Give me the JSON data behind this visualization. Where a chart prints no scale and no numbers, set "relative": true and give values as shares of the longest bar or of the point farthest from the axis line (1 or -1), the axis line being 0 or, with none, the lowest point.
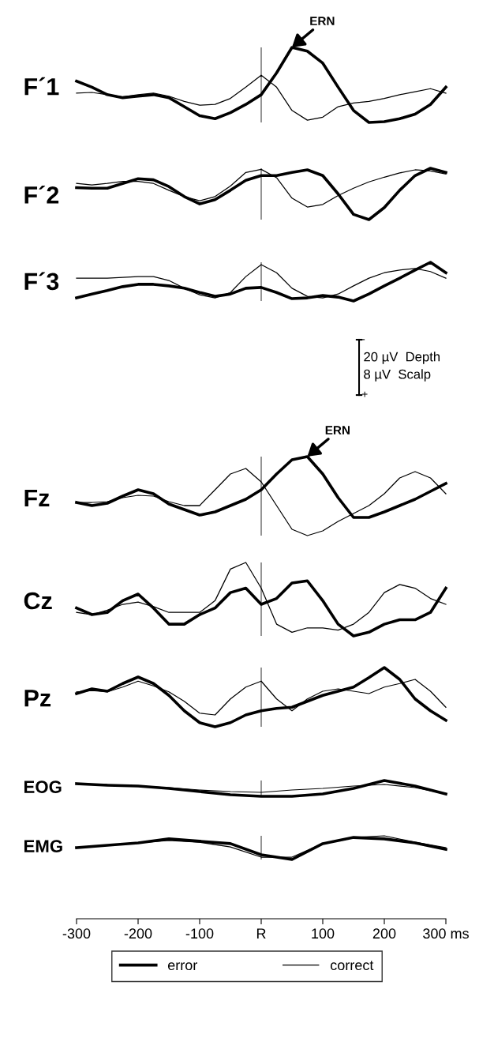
{
  "chart_data": [
    {
      "type": "line",
      "relative": true,
      "ylabel": "F´1",
      "xlim": [
        -300,
        300
      ],
      "tick_labels": false,
      "x": [
        -300,
        -275,
        -250,
        -225,
        -200,
        -175,
        -150,
        -125,
        -100,
        -75,
        -50,
        -25,
        0,
        25,
        50,
        75,
        100,
        125,
        150,
        175,
        200,
        225,
        250,
        275,
        300
      ],
      "series": [
        {
          "color": "#000000",
          "values": [
            0.55,
            0.47,
            0.37,
            0.33,
            0.35,
            0.37,
            0.33,
            0.21,
            0.09,
            0.05,
            0.13,
            0.24,
            0.37,
            0.66,
            1.0,
            0.95,
            0.79,
            0.47,
            0.16,
            0,
            0.01,
            0.05,
            0.11,
            0.24,
            0.47
          ]
        },
        {
          "color": "#000000",
          "values": [
            0.39,
            0.4,
            0.37,
            0.34,
            0.37,
            0.39,
            0.35,
            0.28,
            0.23,
            0.24,
            0.32,
            0.47,
            0.63,
            0.47,
            0.16,
            0.03,
            0.07,
            0.21,
            0.26,
            0.28,
            0.32,
            0.37,
            0.41,
            0.45,
            0.39
          ]
        }
      ],
      "ref_lines": [
        {
          "axis": "x",
          "value": 0,
          "color": "#555555"
        }
      ],
      "annotations": [
        {
          "text": "ERN",
          "x": 50,
          "y": 1
        }
      ]
    },
    {
      "type": "line",
      "relative": true,
      "ylabel": "F´2",
      "xlim": [
        -300,
        300
      ],
      "tick_labels": false,
      "x": [
        -300,
        -275,
        -250,
        -225,
        -200,
        -175,
        -150,
        -125,
        -100,
        -75,
        -50,
        -25,
        0,
        25,
        50,
        75,
        100,
        125,
        150,
        175,
        200,
        225,
        250,
        275,
        300
      ],
      "series": [
        {
          "color": "#000000",
          "values": [
            0.63,
            0.62,
            0.62,
            0.71,
            0.8,
            0.78,
            0.65,
            0.46,
            0.32,
            0.4,
            0.58,
            0.77,
            0.86,
            0.86,
            0.92,
            0.97,
            0.86,
            0.51,
            0.12,
            0.02,
            0.25,
            0.58,
            0.86,
            1.0,
            0.92
          ]
        },
        {
          "color": "#000000",
          "values": [
            0.71,
            0.68,
            0.71,
            0.75,
            0.75,
            0.71,
            0.58,
            0.46,
            0.38,
            0.46,
            0.66,
            0.92,
            0.98,
            0.82,
            0.43,
            0.26,
            0.31,
            0.48,
            0.62,
            0.74,
            0.83,
            0.91,
            0.97,
            0.95,
            0.89
          ]
        }
      ],
      "ref_lines": [
        {
          "axis": "x",
          "value": 0,
          "color": "#555555"
        }
      ]
    },
    {
      "type": "line",
      "relative": true,
      "ylabel": "F´3",
      "xlim": [
        -300,
        300
      ],
      "tick_labels": false,
      "x": [
        -300,
        -275,
        -250,
        -225,
        -200,
        -175,
        -150,
        -125,
        -100,
        -75,
        -50,
        -25,
        0,
        25,
        50,
        75,
        100,
        125,
        150,
        175,
        200,
        225,
        250,
        275,
        300
      ],
      "series": [
        {
          "color": "#000000",
          "values": [
            0.08,
            0.18,
            0.27,
            0.37,
            0.43,
            0.43,
            0.39,
            0.33,
            0.22,
            0.12,
            0.18,
            0.33,
            0.35,
            0.22,
            0.06,
            0.08,
            0.14,
            0.1,
            0,
            0.18,
            0.39,
            0.59,
            0.8,
            1.0,
            0.73
          ]
        },
        {
          "color": "#000000",
          "values": [
            0.59,
            0.59,
            0.59,
            0.61,
            0.63,
            0.63,
            0.53,
            0.33,
            0.16,
            0.08,
            0.22,
            0.63,
            0.94,
            0.73,
            0.33,
            0.12,
            0.08,
            0.18,
            0.39,
            0.59,
            0.73,
            0.8,
            0.84,
            0.76,
            0.59
          ]
        }
      ],
      "ref_lines": [
        {
          "axis": "x",
          "value": 0,
          "color": "#555555"
        }
      ],
      "annotations": [
        "-",
        "20 µV  Depth",
        "8 µV  Scalp",
        "+"
      ]
    },
    {
      "type": "line",
      "relative": true,
      "ylabel": "Fz",
      "xlim": [
        -300,
        300
      ],
      "tick_labels": false,
      "x": [
        -300,
        -275,
        -250,
        -225,
        -200,
        -175,
        -150,
        -125,
        -100,
        -75,
        -50,
        -25,
        0,
        25,
        50,
        75,
        100,
        125,
        150,
        175,
        200,
        225,
        250,
        275,
        300
      ],
      "series": [
        {
          "color": "#000000",
          "values": [
            0.42,
            0.38,
            0.41,
            0.5,
            0.58,
            0.53,
            0.4,
            0.33,
            0.26,
            0.3,
            0.38,
            0.46,
            0.58,
            0.78,
            0.96,
            1.0,
            0.78,
            0.48,
            0.23,
            0.23,
            0.3,
            0.38,
            0.46,
            0.56,
            0.66
          ]
        },
        {
          "color": "#000000",
          "values": [
            0.42,
            0.42,
            0.43,
            0.48,
            0.51,
            0.5,
            0.43,
            0.38,
            0.38,
            0.58,
            0.78,
            0.85,
            0.68,
            0.38,
            0.08,
            0,
            0.06,
            0.18,
            0.28,
            0.38,
            0.53,
            0.73,
            0.81,
            0.73,
            0.53
          ]
        }
      ],
      "ref_lines": [
        {
          "axis": "x",
          "value": 0,
          "color": "#555555"
        }
      ],
      "annotations": [
        {
          "text": "ERN",
          "x": 75,
          "y": 1
        }
      ]
    },
    {
      "type": "line",
      "relative": true,
      "ylabel": "Cz",
      "xlim": [
        -300,
        300
      ],
      "tick_labels": false,
      "x": [
        -300,
        -275,
        -250,
        -225,
        -200,
        -175,
        -150,
        -125,
        -100,
        -75,
        -50,
        -25,
        0,
        25,
        50,
        75,
        100,
        125,
        150,
        175,
        200,
        225,
        250,
        275,
        300
      ],
      "series": [
        {
          "color": "#000000",
          "values": [
            0.38,
            0.29,
            0.32,
            0.48,
            0.57,
            0.38,
            0.16,
            0.16,
            0.29,
            0.38,
            0.59,
            0.65,
            0.43,
            0.51,
            0.72,
            0.75,
            0.48,
            0.16,
            0,
            0.05,
            0.16,
            0.22,
            0.22,
            0.32,
            0.65
          ]
        },
        {
          "color": "#000000",
          "values": [
            0.32,
            0.29,
            0.35,
            0.43,
            0.46,
            0.4,
            0.32,
            0.32,
            0.32,
            0.48,
            0.91,
            1.0,
            0.65,
            0.16,
            0.05,
            0.11,
            0.11,
            0.08,
            0.16,
            0.32,
            0.59,
            0.7,
            0.65,
            0.51,
            0.43
          ]
        }
      ],
      "ref_lines": [
        {
          "axis": "x",
          "value": 0,
          "color": "#555555"
        }
      ]
    },
    {
      "type": "line",
      "relative": true,
      "ylabel": "Pz",
      "xlim": [
        -300,
        300
      ],
      "tick_labels": false,
      "x": [
        -300,
        -275,
        -250,
        -225,
        -200,
        -175,
        -150,
        -125,
        -100,
        -75,
        -50,
        -25,
        0,
        25,
        50,
        75,
        100,
        125,
        150,
        175,
        200,
        225,
        250,
        275,
        300
      ],
      "series": [
        {
          "color": "#000000",
          "values": [
            0.56,
            0.64,
            0.6,
            0.73,
            0.84,
            0.73,
            0.53,
            0.27,
            0.07,
            0,
            0.07,
            0.2,
            0.27,
            0.31,
            0.33,
            0.43,
            0.53,
            0.6,
            0.67,
            0.83,
            1.0,
            0.8,
            0.47,
            0.27,
            0.11
          ]
        },
        {
          "color": "#000000",
          "values": [
            0.59,
            0.61,
            0.59,
            0.67,
            0.77,
            0.69,
            0.59,
            0.43,
            0.23,
            0.2,
            0.47,
            0.67,
            0.77,
            0.47,
            0.27,
            0.47,
            0.6,
            0.64,
            0.6,
            0.56,
            0.67,
            0.73,
            0.8,
            0.6,
            0.33
          ]
        }
      ],
      "ref_lines": [
        {
          "axis": "x",
          "value": 0,
          "color": "#555555"
        }
      ]
    },
    {
      "type": "line",
      "relative": true,
      "ylabel": "EOG",
      "xlim": [
        -300,
        300
      ],
      "tick_labels": false,
      "x": [
        -300,
        -250,
        -200,
        -150,
        -100,
        -50,
        0,
        50,
        100,
        150,
        200,
        250,
        300
      ],
      "series": [
        {
          "color": "#000000",
          "values": [
            0.8,
            0.7,
            0.65,
            0.5,
            0.3,
            0.1,
            0,
            0,
            0.15,
            0.5,
            1.0,
            0.65,
            0.15
          ]
        },
        {
          "color": "#000000",
          "values": [
            0.8,
            0.75,
            0.65,
            0.55,
            0.4,
            0.3,
            0.25,
            0.4,
            0.5,
            0.65,
            0.75,
            0.55,
            0.15
          ]
        }
      ],
      "ref_lines": [
        {
          "axis": "x",
          "value": 0,
          "color": "#555555"
        }
      ]
    },
    {
      "type": "line",
      "relative": true,
      "ylabel": "EMG",
      "xlim": [
        -300,
        300
      ],
      "tick_labels": "x",
      "legend": "bottom",
      "xticks": [
        -300,
        -200,
        -100,
        {
          "value": 0,
          "label": "R"
        },
        100,
        200,
        {
          "value": 300,
          "label": "300 ms"
        }
      ],
      "x": [
        -300,
        -250,
        -200,
        -150,
        -100,
        -50,
        0,
        50,
        100,
        150,
        200,
        250,
        300
      ],
      "series": [
        {
          "name": "error",
          "color": "#000000",
          "values": [
            0.5,
            0.6,
            0.7,
            0.87,
            0.77,
            0.67,
            0.2,
            0,
            0.67,
            0.93,
            0.87,
            0.7,
            0.43
          ]
        },
        {
          "name": "correct",
          "color": "#000000",
          "values": [
            0.5,
            0.6,
            0.7,
            0.8,
            0.73,
            0.53,
            0.1,
            0.1,
            0.67,
            0.93,
            1.0,
            0.73,
            0.5
          ]
        }
      ],
      "ref_lines": [
        {
          "axis": "x",
          "value": 0,
          "color": "#555555"
        }
      ]
    }
  ]
}
